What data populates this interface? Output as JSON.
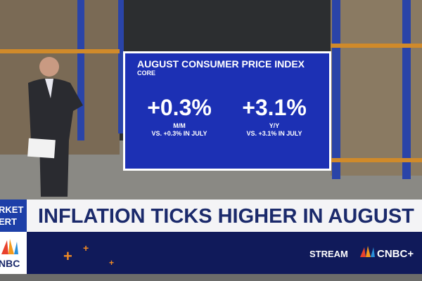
{
  "board": {
    "title": "AUGUST CONSUMER PRICE INDEX",
    "subtitle": "CORE",
    "stats": [
      {
        "value": "+0.3%",
        "label": "M/M",
        "note": "VS. +0.3% IN JULY"
      },
      {
        "value": "+3.1%",
        "label": "Y/Y",
        "note": "VS. +3.1% IN JULY"
      }
    ]
  },
  "lower_third": {
    "tag_line1": "RKET",
    "tag_line2": "ERT",
    "headline": "INFLATION TICKS HIGHER IN AUGUST",
    "logo": "NBC",
    "stream": "STREAM",
    "brand": "CNBC+"
  }
}
